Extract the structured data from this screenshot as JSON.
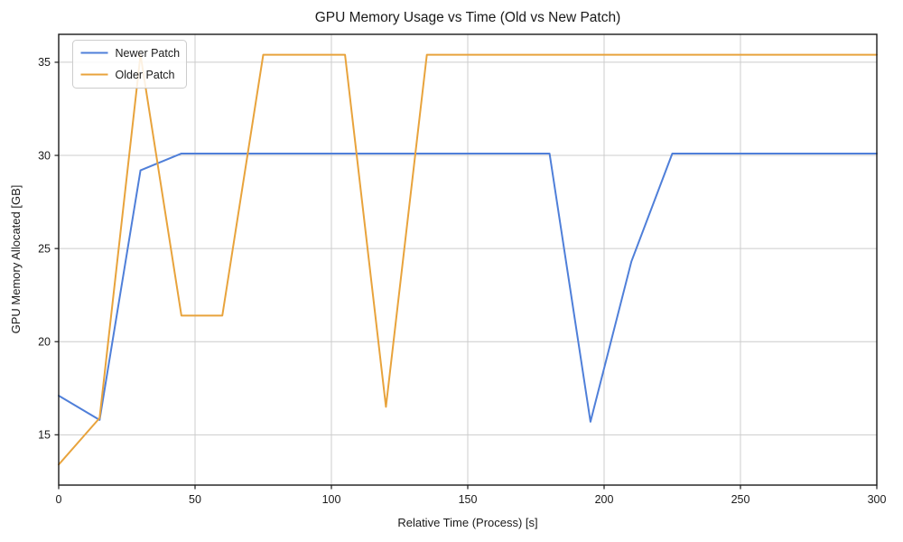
{
  "chart_data": {
    "type": "line",
    "title": "GPU Memory Usage vs Time (Old vs New Patch)",
    "xlabel": "Relative Time (Process) [s]",
    "ylabel": "GPU Memory Allocated [GB]",
    "xlim": [
      0,
      300
    ],
    "ylim": [
      12.3,
      36.5
    ],
    "xticks": [
      0,
      50,
      100,
      150,
      200,
      250,
      300
    ],
    "yticks": [
      15,
      20,
      25,
      30,
      35
    ],
    "grid": true,
    "legend_position": "upper-left",
    "x": [
      0,
      15,
      30,
      45,
      60,
      75,
      90,
      105,
      120,
      135,
      150,
      165,
      180,
      195,
      210,
      225,
      240,
      255,
      270,
      285,
      300
    ],
    "series": [
      {
        "name": "Newer Patch",
        "color": "#4f7fd9",
        "values": [
          17.1,
          15.8,
          29.2,
          30.1,
          30.1,
          30.1,
          30.1,
          30.1,
          30.1,
          30.1,
          30.1,
          30.1,
          30.1,
          15.7,
          24.3,
          30.1,
          30.1,
          30.1,
          30.1,
          30.1,
          30.1
        ]
      },
      {
        "name": "Older Patch",
        "color": "#e8a33c",
        "values": [
          13.4,
          15.9,
          35.4,
          21.4,
          21.4,
          35.4,
          35.4,
          35.4,
          16.5,
          35.4,
          35.4,
          35.4,
          35.4,
          35.4,
          35.4,
          35.4,
          35.4,
          35.4,
          35.4,
          35.4,
          35.4
        ]
      }
    ]
  },
  "style": {
    "grid_color": "#cccccc",
    "axis_color": "#1a1a1a",
    "text_color": "#1a1a1a",
    "legend_bg": "#ffffff",
    "legend_border": "#cccccc",
    "line_width": 2
  }
}
